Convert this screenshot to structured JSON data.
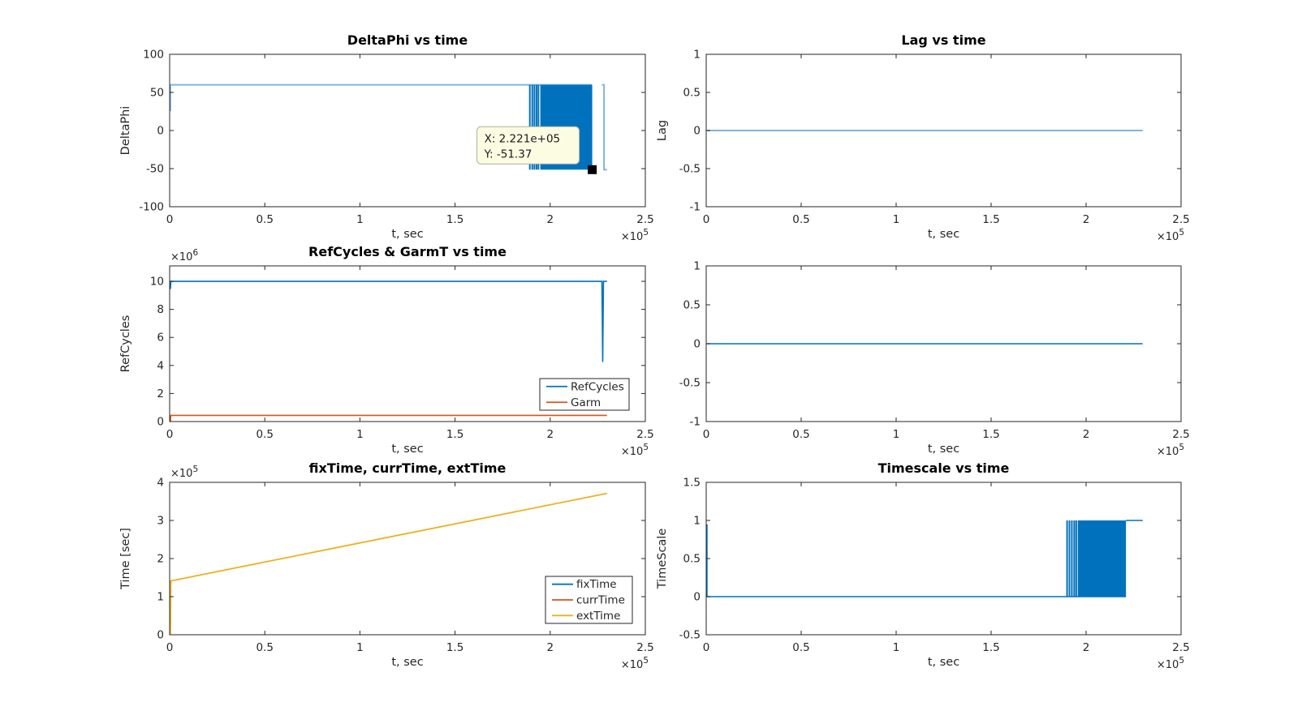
{
  "figure": {
    "background": "#ffffff",
    "axis_color": "#262626",
    "palette": {
      "blue": "#0072BD",
      "lightblue": "#7FB5DC",
      "orange": "#D95319",
      "yellow": "#EDB120",
      "black": "#000000"
    },
    "datatip": {
      "bg": "#FCFCE3",
      "border": "#AFAFA0"
    }
  },
  "chart_data": [
    {
      "id": "deltaphi",
      "type": "line",
      "title": "DeltaPhi vs time",
      "xlabel": "t, sec",
      "ylabel": "DeltaPhi",
      "xlim": [
        0,
        2.5
      ],
      "ylim": [
        -100,
        100
      ],
      "x_unit_scale": "1e5",
      "xtick_vals": [
        0,
        0.5,
        1,
        1.5,
        2,
        2.5
      ],
      "xtick_labels": [
        "0",
        "0.5",
        "1",
        "1.5",
        "2",
        "2.5"
      ],
      "ytick_vals": [
        100,
        50,
        0,
        -50,
        -100
      ],
      "ytick_labels": [
        "100",
        "50",
        "0",
        "-50",
        "-100"
      ],
      "x_mult": {
        "base": "×10",
        "exp": "5"
      },
      "y_mult": null,
      "legend": null,
      "elements": [
        {
          "type": "polyline",
          "name": "DeltaPhi",
          "color": "lightblue",
          "width": 2,
          "points": [
            [
              0.004,
              25.5
            ],
            [
              0.004,
              60
            ],
            [
              2.218,
              60
            ]
          ]
        },
        {
          "type": "vlines",
          "name": "DeltaPhi-oscillation-lines",
          "color": "blue",
          "width": 2,
          "xs": [
            1.893,
            1.906,
            1.917,
            1.928,
            1.938
          ],
          "y0": -51.37,
          "y1": 60
        },
        {
          "type": "band",
          "name": "DeltaPhi-oscillation-band",
          "color": "blue",
          "x0": 1.948,
          "x1": 2.221,
          "y0": -51.37,
          "y1": 60
        },
        {
          "type": "polyline",
          "name": "DeltaPhi-last-step",
          "color": "lightblue",
          "width": 2,
          "points": [
            [
              2.272,
              60
            ],
            [
              2.283,
              60
            ],
            [
              2.283,
              -51.37
            ],
            [
              2.298,
              -51.37
            ]
          ]
        },
        {
          "type": "marker",
          "name": "datatip-marker",
          "color": "black",
          "x": 2.221,
          "y": -51.37,
          "size": 11
        },
        {
          "type": "tooltip",
          "name": "datatip",
          "x": 2.221,
          "y": -51.37,
          "lines": [
            "X: 2.221e+05",
            "Y: -51.37"
          ]
        }
      ]
    },
    {
      "id": "lag",
      "type": "line",
      "title": "Lag vs time",
      "xlabel": "t, sec",
      "ylabel": "Lag",
      "xlim": [
        0,
        2.5
      ],
      "ylim": [
        -1,
        1
      ],
      "x_unit_scale": "1e5",
      "xtick_vals": [
        0,
        0.5,
        1,
        1.5,
        2,
        2.5
      ],
      "xtick_labels": [
        "0",
        "0.5",
        "1",
        "1.5",
        "2",
        "2.5"
      ],
      "ytick_vals": [
        1,
        0.5,
        0,
        -0.5,
        -1
      ],
      "ytick_labels": [
        "1",
        "0.5",
        "0",
        "-0.5",
        "-1"
      ],
      "x_mult": {
        "base": "×10",
        "exp": "5"
      },
      "y_mult": null,
      "legend": null,
      "elements": [
        {
          "type": "polyline",
          "name": "Lag",
          "color": "lightblue",
          "width": 2,
          "points": [
            [
              0.004,
              0
            ],
            [
              2.298,
              0
            ]
          ]
        }
      ]
    },
    {
      "id": "refcycles",
      "type": "line",
      "title": "RefCycles & GarmT vs time",
      "xlabel": "t, sec",
      "ylabel": "RefCycles",
      "xlim": [
        0,
        2.5
      ],
      "ylim": [
        0,
        11.1
      ],
      "x_unit_scale": "1e5",
      "xtick_vals": [
        0,
        0.5,
        1,
        1.5,
        2,
        2.5
      ],
      "xtick_labels": [
        "0",
        "0.5",
        "1",
        "1.5",
        "2",
        "2.5"
      ],
      "ytick_vals": [
        10,
        8,
        6,
        4,
        2,
        0
      ],
      "ytick_labels": [
        "10",
        "8",
        "6",
        "4",
        "2",
        "0"
      ],
      "x_mult": {
        "base": "×10",
        "exp": "5"
      },
      "y_mult": {
        "base": "×10",
        "exp": "6"
      },
      "legend": {
        "entries": [
          {
            "label": "RefCycles",
            "color": "blue"
          },
          {
            "label": "Garm",
            "color": "orange"
          }
        ]
      },
      "elements": [
        {
          "type": "polyline",
          "name": "RefCycles",
          "color": "blue",
          "width": 1.6,
          "points": [
            [
              0.004,
              9.45
            ],
            [
              0.006,
              10
            ],
            [
              2.272,
              10
            ],
            [
              2.276,
              4.25
            ],
            [
              2.28,
              10
            ],
            [
              2.298,
              10
            ]
          ]
        },
        {
          "type": "polyline",
          "name": "Garm",
          "color": "orange",
          "width": 1.6,
          "points": [
            [
              0.004,
              0.02
            ],
            [
              0.006,
              0.44
            ],
            [
              2.298,
              0.44
            ]
          ]
        }
      ]
    },
    {
      "id": "untitled",
      "type": "line",
      "title": "",
      "xlabel": "t, sec",
      "ylabel": "",
      "xlim": [
        0,
        2.5
      ],
      "ylim": [
        -1,
        1
      ],
      "x_unit_scale": "1e5",
      "xtick_vals": [
        0,
        0.5,
        1,
        1.5,
        2,
        2.5
      ],
      "xtick_labels": [
        "0",
        "0.5",
        "1",
        "1.5",
        "2",
        "2.5"
      ],
      "ytick_vals": [
        1,
        0.5,
        0,
        -0.5,
        -1
      ],
      "ytick_labels": [
        "1",
        "0.5",
        "0",
        "-0.5",
        "-1"
      ],
      "x_mult": {
        "base": "×10",
        "exp": "5"
      },
      "y_mult": null,
      "legend": null,
      "elements": [
        {
          "type": "polyline",
          "name": "zero-line",
          "color": "blue",
          "width": 1.6,
          "points": [
            [
              0.004,
              0
            ],
            [
              2.298,
              0
            ]
          ]
        }
      ]
    },
    {
      "id": "times",
      "type": "line",
      "title": "fixTime, currTime, extTime",
      "xlabel": "t, sec",
      "ylabel": "Time [sec]",
      "xlim": [
        0,
        2.5
      ],
      "ylim": [
        0,
        4
      ],
      "x_unit_scale": "1e5",
      "xtick_vals": [
        0,
        0.5,
        1,
        1.5,
        2,
        2.5
      ],
      "xtick_labels": [
        "0",
        "0.5",
        "1",
        "1.5",
        "2",
        "2.5"
      ],
      "ytick_vals": [
        4,
        3,
        2,
        1,
        0
      ],
      "ytick_labels": [
        "4",
        "3",
        "2",
        "1",
        "0"
      ],
      "x_mult": {
        "base": "×10",
        "exp": "5"
      },
      "y_mult": {
        "base": "×10",
        "exp": "5"
      },
      "legend": {
        "entries": [
          {
            "label": "fixTime",
            "color": "blue"
          },
          {
            "label": "currTime",
            "color": "orange"
          },
          {
            "label": "extTime",
            "color": "yellow"
          }
        ]
      },
      "elements": [
        {
          "type": "polyline",
          "name": "extTime",
          "color": "yellow",
          "width": 1.8,
          "points": [
            [
              0.004,
              0.02
            ],
            [
              0.006,
              1.413
            ],
            [
              2.298,
              3.71
            ]
          ]
        }
      ]
    },
    {
      "id": "timescale",
      "type": "line",
      "title": "Timescale vs time",
      "xlabel": "t, sec",
      "ylabel": "TimeScale",
      "xlim": [
        0,
        2.5
      ],
      "ylim": [
        -0.5,
        1.5
      ],
      "x_unit_scale": "1e5",
      "xtick_vals": [
        0,
        0.5,
        1,
        1.5,
        2,
        2.5
      ],
      "xtick_labels": [
        "0",
        "0.5",
        "1",
        "1.5",
        "2",
        "2.5"
      ],
      "ytick_vals": [
        1.5,
        1,
        0.5,
        0,
        -0.5
      ],
      "ytick_labels": [
        "1.5",
        "1",
        "0.5",
        "0",
        "-0.5"
      ],
      "x_mult": {
        "base": "×10",
        "exp": "5"
      },
      "y_mult": null,
      "legend": null,
      "elements": [
        {
          "type": "polyline",
          "name": "TimeScale",
          "color": "blue",
          "width": 1.6,
          "points": [
            [
              0.004,
              0.95
            ],
            [
              0.004,
              0
            ],
            [
              2.21,
              0
            ]
          ]
        },
        {
          "type": "vlines",
          "name": "TimeScale-oscillation-lines",
          "color": "blue",
          "width": 2,
          "xs": [
            1.9,
            1.9125,
            1.925,
            1.9375,
            1.948
          ],
          "y0": 0,
          "y1": 1
        },
        {
          "type": "band",
          "name": "TimeScale-oscillation-band",
          "color": "blue",
          "x0": 1.956,
          "x1": 2.21,
          "y0": 0,
          "y1": 1
        },
        {
          "type": "polyline",
          "name": "TimeScale-end",
          "color": "blue",
          "width": 1.6,
          "points": [
            [
              2.21,
              1
            ],
            [
              2.298,
              1
            ]
          ]
        }
      ]
    }
  ]
}
